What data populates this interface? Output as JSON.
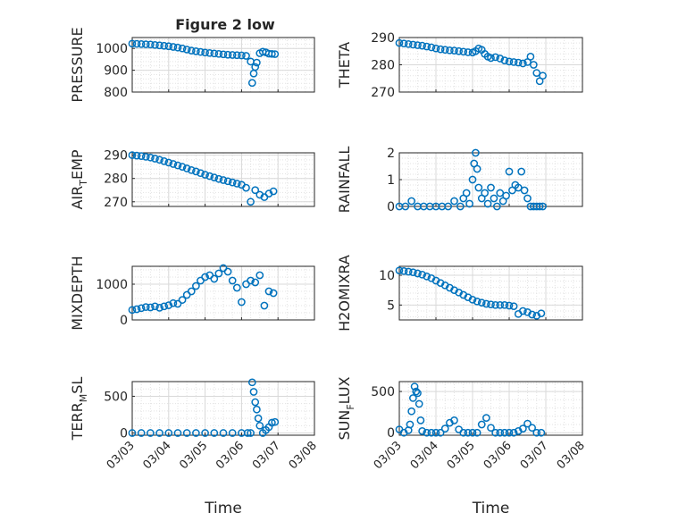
{
  "figure": {
    "title": "Figure 2 low",
    "xlabel": "Time"
  },
  "colors": {
    "marker": "#0072BD",
    "axis": "#262626",
    "grid": "#d9d9d9",
    "background": "#ffffff"
  },
  "chart_data": [
    {
      "type": "scatter",
      "marker": "o",
      "ylabel": "PRESSURE",
      "ylim": [
        800,
        1050
      ],
      "yticks": [
        "800",
        "900",
        "1000"
      ],
      "xlim": [
        "03/03",
        "03/08"
      ],
      "xticks": [
        "03/03",
        "03/04",
        "03/05",
        "03/06",
        "03/07",
        "03/08"
      ],
      "grid": true,
      "minor_grid": true,
      "series": [
        {
          "x": [
            "03/03 00:00",
            "03/03 03:00",
            "03/03 06:00",
            "03/03 09:00",
            "03/03 12:00",
            "03/03 15:00",
            "03/03 18:00",
            "03/03 21:00",
            "03/04 00:00",
            "03/04 03:00",
            "03/04 06:00",
            "03/04 09:00",
            "03/04 12:00",
            "03/04 15:00",
            "03/04 18:00",
            "03/04 21:00",
            "03/05 00:00",
            "03/05 03:00",
            "03/05 06:00",
            "03/05 09:00",
            "03/05 12:00",
            "03/05 15:00",
            "03/05 18:00",
            "03/05 21:00",
            "03/06 00:00",
            "03/06 03:00",
            "03/06 06:00",
            "03/06 07:00",
            "03/06 08:00",
            "03/06 09:00",
            "03/06 10:00",
            "03/06 12:00",
            "03/06 14:00",
            "03/06 16:00",
            "03/06 18:00",
            "03/06 20:00",
            "03/06 22:00"
          ],
          "y": [
            1022,
            1021,
            1020,
            1019,
            1018,
            1016,
            1014,
            1012,
            1010,
            1007,
            1004,
            1000,
            995,
            990,
            987,
            984,
            981,
            979,
            977,
            975,
            973,
            971,
            970,
            969,
            968,
            966,
            940,
            842,
            885,
            915,
            935,
            978,
            985,
            982,
            976,
            975,
            974
          ]
        }
      ]
    },
    {
      "type": "scatter",
      "marker": "o",
      "ylabel": "THETA",
      "ylim": [
        270,
        290
      ],
      "yticks": [
        "270",
        "280",
        "290"
      ],
      "xlim": [
        "03/03",
        "03/08"
      ],
      "xticks": [
        "03/03",
        "03/04",
        "03/05",
        "03/06",
        "03/07",
        "03/08"
      ],
      "grid": true,
      "minor_grid": true,
      "series": [
        {
          "x": [
            "03/03 00:00",
            "03/03 03:00",
            "03/03 06:00",
            "03/03 09:00",
            "03/03 12:00",
            "03/03 15:00",
            "03/03 18:00",
            "03/03 21:00",
            "03/04 00:00",
            "03/04 03:00",
            "03/04 06:00",
            "03/04 09:00",
            "03/04 12:00",
            "03/04 15:00",
            "03/04 18:00",
            "03/04 21:00",
            "03/05 00:00",
            "03/05 02:00",
            "03/05 04:00",
            "03/05 06:00",
            "03/05 08:00",
            "03/05 10:00",
            "03/05 12:00",
            "03/05 15:00",
            "03/05 18:00",
            "03/05 21:00",
            "03/06 00:00",
            "03/06 03:00",
            "03/06 06:00",
            "03/06 09:00",
            "03/06 12:00",
            "03/06 14:00",
            "03/06 16:00",
            "03/06 18:00",
            "03/06 20:00",
            "03/06 22:00"
          ],
          "y": [
            288,
            287.8,
            287.6,
            287.4,
            287.2,
            287,
            286.7,
            286.4,
            286,
            285.7,
            285.5,
            285.3,
            285.2,
            285,
            284.8,
            284.6,
            284.5,
            285,
            286,
            285.5,
            284,
            283,
            282.5,
            282.8,
            282.3,
            281.6,
            281.2,
            281,
            280.8,
            280.5,
            281,
            283,
            280,
            277,
            274,
            276
          ]
        }
      ]
    },
    {
      "type": "scatter",
      "marker": "o",
      "ylabel": "AIR_TEMP",
      "ylim": [
        268,
        291
      ],
      "yticks": [
        "270",
        "280",
        "290"
      ],
      "xlim": [
        "03/03",
        "03/08"
      ],
      "xticks": [
        "03/03",
        "03/04",
        "03/05",
        "03/06",
        "03/07",
        "03/08"
      ],
      "grid": true,
      "minor_grid": true,
      "series": [
        {
          "x": [
            "03/03 00:00",
            "03/03 03:00",
            "03/03 06:00",
            "03/03 09:00",
            "03/03 12:00",
            "03/03 15:00",
            "03/03 18:00",
            "03/03 21:00",
            "03/04 00:00",
            "03/04 03:00",
            "03/04 06:00",
            "03/04 09:00",
            "03/04 12:00",
            "03/04 15:00",
            "03/04 18:00",
            "03/04 21:00",
            "03/05 00:00",
            "03/05 03:00",
            "03/05 06:00",
            "03/05 09:00",
            "03/05 12:00",
            "03/05 15:00",
            "03/05 18:00",
            "03/05 21:00",
            "03/06 00:00",
            "03/06 03:00",
            "03/06 06:00",
            "03/06 09:00",
            "03/06 12:00",
            "03/06 15:00",
            "03/06 18:00",
            "03/06 21:00"
          ],
          "y": [
            290,
            289.8,
            289.6,
            289.3,
            289,
            288.5,
            288,
            287.4,
            286.8,
            286.2,
            285.6,
            285,
            284.3,
            283.6,
            283,
            282.3,
            281.6,
            281,
            280.4,
            279.8,
            279.3,
            278.8,
            278.3,
            277.8,
            277.3,
            276,
            270,
            275,
            273,
            272,
            273.5,
            274.5
          ]
        }
      ]
    },
    {
      "type": "scatter",
      "marker": "o",
      "ylabel": "RAINFALL",
      "ylim": [
        0,
        2
      ],
      "yticks": [
        "0",
        "1",
        "2"
      ],
      "xlim": [
        "03/03",
        "03/08"
      ],
      "xticks": [
        "03/03",
        "03/04",
        "03/05",
        "03/06",
        "03/07",
        "03/08"
      ],
      "grid": true,
      "minor_grid": true,
      "series": [
        {
          "x": [
            "03/03 00:00",
            "03/03 04:00",
            "03/03 08:00",
            "03/03 12:00",
            "03/03 16:00",
            "03/03 20:00",
            "03/04 00:00",
            "03/04 04:00",
            "03/04 08:00",
            "03/04 12:00",
            "03/04 16:00",
            "03/04 18:00",
            "03/04 20:00",
            "03/04 22:00",
            "03/05 00:00",
            "03/05 01:00",
            "03/05 02:00",
            "03/05 03:00",
            "03/05 04:00",
            "03/05 06:00",
            "03/05 08:00",
            "03/05 10:00",
            "03/05 12:00",
            "03/05 14:00",
            "03/05 16:00",
            "03/05 18:00",
            "03/05 20:00",
            "03/05 22:00",
            "03/06 00:00",
            "03/06 02:00",
            "03/06 04:00",
            "03/06 06:00",
            "03/06 08:00",
            "03/06 10:00",
            "03/06 12:00",
            "03/06 14:00",
            "03/06 16:00",
            "03/06 18:00",
            "03/06 20:00",
            "03/06 22:00"
          ],
          "y": [
            0,
            0,
            0.2,
            0,
            0,
            0,
            0,
            0,
            0,
            0.2,
            0,
            0.3,
            0.5,
            0.1,
            1.0,
            1.6,
            2.0,
            1.4,
            0.7,
            0.3,
            0.5,
            0.1,
            0.7,
            0.3,
            0,
            0.5,
            0.2,
            0.4,
            1.3,
            0.6,
            0.8,
            0.7,
            1.3,
            0.6,
            0.3,
            0,
            0,
            0,
            0,
            0
          ]
        }
      ]
    },
    {
      "type": "scatter",
      "marker": "o",
      "ylabel": "MIXDEPTH",
      "ylim": [
        0,
        1500
      ],
      "yticks": [
        "0",
        "1000"
      ],
      "xlim": [
        "03/03",
        "03/08"
      ],
      "xticks": [
        "03/03",
        "03/04",
        "03/05",
        "03/06",
        "03/07",
        "03/08"
      ],
      "grid": true,
      "minor_grid": true,
      "series": [
        {
          "x": [
            "03/03 00:00",
            "03/03 03:00",
            "03/03 06:00",
            "03/03 09:00",
            "03/03 12:00",
            "03/03 15:00",
            "03/03 18:00",
            "03/03 21:00",
            "03/04 00:00",
            "03/04 03:00",
            "03/04 06:00",
            "03/04 09:00",
            "03/04 12:00",
            "03/04 15:00",
            "03/04 18:00",
            "03/04 21:00",
            "03/05 00:00",
            "03/05 03:00",
            "03/05 06:00",
            "03/05 09:00",
            "03/05 12:00",
            "03/05 15:00",
            "03/05 18:00",
            "03/05 21:00",
            "03/06 00:00",
            "03/06 03:00",
            "03/06 06:00",
            "03/06 09:00",
            "03/06 12:00",
            "03/06 15:00",
            "03/06 18:00",
            "03/06 21:00"
          ],
          "y": [
            280,
            300,
            330,
            360,
            350,
            380,
            340,
            380,
            410,
            470,
            450,
            560,
            700,
            800,
            950,
            1100,
            1200,
            1250,
            1150,
            1300,
            1450,
            1350,
            1100,
            900,
            500,
            1000,
            1100,
            1050,
            1250,
            400,
            800,
            750
          ]
        }
      ]
    },
    {
      "type": "scatter",
      "marker": "o",
      "ylabel": "H2OMIXRA",
      "ylim": [
        2.5,
        11.5
      ],
      "yticks": [
        "5",
        "10"
      ],
      "xlim": [
        "03/03",
        "03/08"
      ],
      "xticks": [
        "03/03",
        "03/04",
        "03/05",
        "03/06",
        "03/07",
        "03/08"
      ],
      "grid": true,
      "minor_grid": true,
      "series": [
        {
          "x": [
            "03/03 00:00",
            "03/03 03:00",
            "03/03 06:00",
            "03/03 09:00",
            "03/03 12:00",
            "03/03 15:00",
            "03/03 18:00",
            "03/03 21:00",
            "03/04 00:00",
            "03/04 03:00",
            "03/04 06:00",
            "03/04 09:00",
            "03/04 12:00",
            "03/04 15:00",
            "03/04 18:00",
            "03/04 21:00",
            "03/05 00:00",
            "03/05 03:00",
            "03/05 06:00",
            "03/05 09:00",
            "03/05 12:00",
            "03/05 15:00",
            "03/05 18:00",
            "03/05 21:00",
            "03/06 00:00",
            "03/06 03:00",
            "03/06 06:00",
            "03/06 09:00",
            "03/06 12:00",
            "03/06 15:00",
            "03/06 18:00",
            "03/06 21:00"
          ],
          "y": [
            10.8,
            10.7,
            10.6,
            10.5,
            10.3,
            10.1,
            9.8,
            9.5,
            9.1,
            8.7,
            8.3,
            7.9,
            7.5,
            7.1,
            6.7,
            6.3,
            5.9,
            5.6,
            5.4,
            5.2,
            5.1,
            5.0,
            5.0,
            5.0,
            4.9,
            4.8,
            3.5,
            4.0,
            3.8,
            3.4,
            3.2,
            3.6
          ]
        }
      ]
    },
    {
      "type": "scatter",
      "marker": "o",
      "ylabel": "TERR_MSL",
      "ylim": [
        -30,
        700
      ],
      "yticks": [
        "0",
        "500"
      ],
      "xlim": [
        "03/03",
        "03/08"
      ],
      "xticks": [
        "03/03",
        "03/04",
        "03/05",
        "03/06",
        "03/07",
        "03/08"
      ],
      "grid": true,
      "minor_grid": true,
      "series": [
        {
          "x": [
            "03/03 00:00",
            "03/03 06:00",
            "03/03 12:00",
            "03/03 18:00",
            "03/04 00:00",
            "03/04 06:00",
            "03/04 12:00",
            "03/04 18:00",
            "03/05 00:00",
            "03/05 06:00",
            "03/05 12:00",
            "03/05 18:00",
            "03/06 00:00",
            "03/06 04:00",
            "03/06 06:00",
            "03/06 07:00",
            "03/06 08:00",
            "03/06 09:00",
            "03/06 10:00",
            "03/06 11:00",
            "03/06 12:00",
            "03/06 14:00",
            "03/06 16:00",
            "03/06 18:00",
            "03/06 20:00",
            "03/06 22:00"
          ],
          "y": [
            0,
            0,
            0,
            0,
            0,
            0,
            0,
            0,
            0,
            0,
            0,
            0,
            0,
            0,
            0,
            690,
            560,
            420,
            320,
            200,
            100,
            0,
            40,
            80,
            140,
            150
          ]
        }
      ]
    },
    {
      "type": "scatter",
      "marker": "o",
      "ylabel": "SUN_FLUX",
      "ylim": [
        -30,
        620
      ],
      "yticks": [
        "0",
        "500"
      ],
      "xlim": [
        "03/03",
        "03/08"
      ],
      "xticks": [
        "03/03",
        "03/04",
        "03/05",
        "03/06",
        "03/07",
        "03/08"
      ],
      "grid": true,
      "minor_grid": true,
      "series": [
        {
          "x": [
            "03/03 00:00",
            "03/03 03:00",
            "03/03 06:00",
            "03/03 07:00",
            "03/03 08:00",
            "03/03 09:00",
            "03/03 10:00",
            "03/03 11:00",
            "03/03 12:00",
            "03/03 13:00",
            "03/03 14:00",
            "03/03 15:00",
            "03/03 18:00",
            "03/03 21:00",
            "03/04 00:00",
            "03/04 03:00",
            "03/04 06:00",
            "03/04 09:00",
            "03/04 12:00",
            "03/04 15:00",
            "03/04 18:00",
            "03/04 21:00",
            "03/05 00:00",
            "03/05 03:00",
            "03/05 06:00",
            "03/05 09:00",
            "03/05 12:00",
            "03/05 15:00",
            "03/05 18:00",
            "03/05 21:00",
            "03/06 00:00",
            "03/06 03:00",
            "03/06 06:00",
            "03/06 09:00",
            "03/06 12:00",
            "03/06 15:00",
            "03/06 18:00",
            "03/06 21:00"
          ],
          "y": [
            40,
            0,
            30,
            100,
            260,
            420,
            560,
            500,
            480,
            350,
            150,
            20,
            0,
            0,
            0,
            0,
            50,
            120,
            150,
            40,
            0,
            0,
            0,
            0,
            100,
            180,
            60,
            0,
            0,
            0,
            0,
            0,
            20,
            50,
            110,
            60,
            0,
            0
          ]
        }
      ]
    }
  ]
}
